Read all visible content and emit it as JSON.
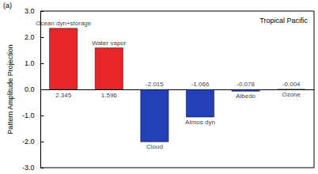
{
  "chart_data": {
    "type": "bar",
    "title": "Tropical Pacific",
    "annotations": [
      "(a)"
    ],
    "y_label": "Pattern Amplitude Projection",
    "categories": [
      "Ocean dyn+storage",
      "Water vapor",
      "Cloud",
      "Atmos dyn",
      "Albedo",
      "Ozone"
    ],
    "values": [
      2.345,
      1.596,
      -2.015,
      -1.066,
      -0.078,
      -0.004
    ],
    "colors": [
      "#e8262a",
      "#e8262a",
      "#2340b8",
      "#2340b8",
      "#2340b8",
      "#2340b8"
    ],
    "ylim": [
      -3,
      3
    ],
    "yticks": [
      {
        "value": -3,
        "label": "-3.0"
      },
      {
        "value": -2,
        "label": "-2.0"
      },
      {
        "value": -1,
        "label": "-1.0"
      },
      {
        "value": 0,
        "label": "0.0"
      },
      {
        "value": 1,
        "label": "1.0"
      },
      {
        "value": 2,
        "label": "2.0"
      },
      {
        "value": 3,
        "label": "3.0"
      }
    ],
    "grid": false,
    "data_labels": true,
    "tick_labels": "y"
  }
}
